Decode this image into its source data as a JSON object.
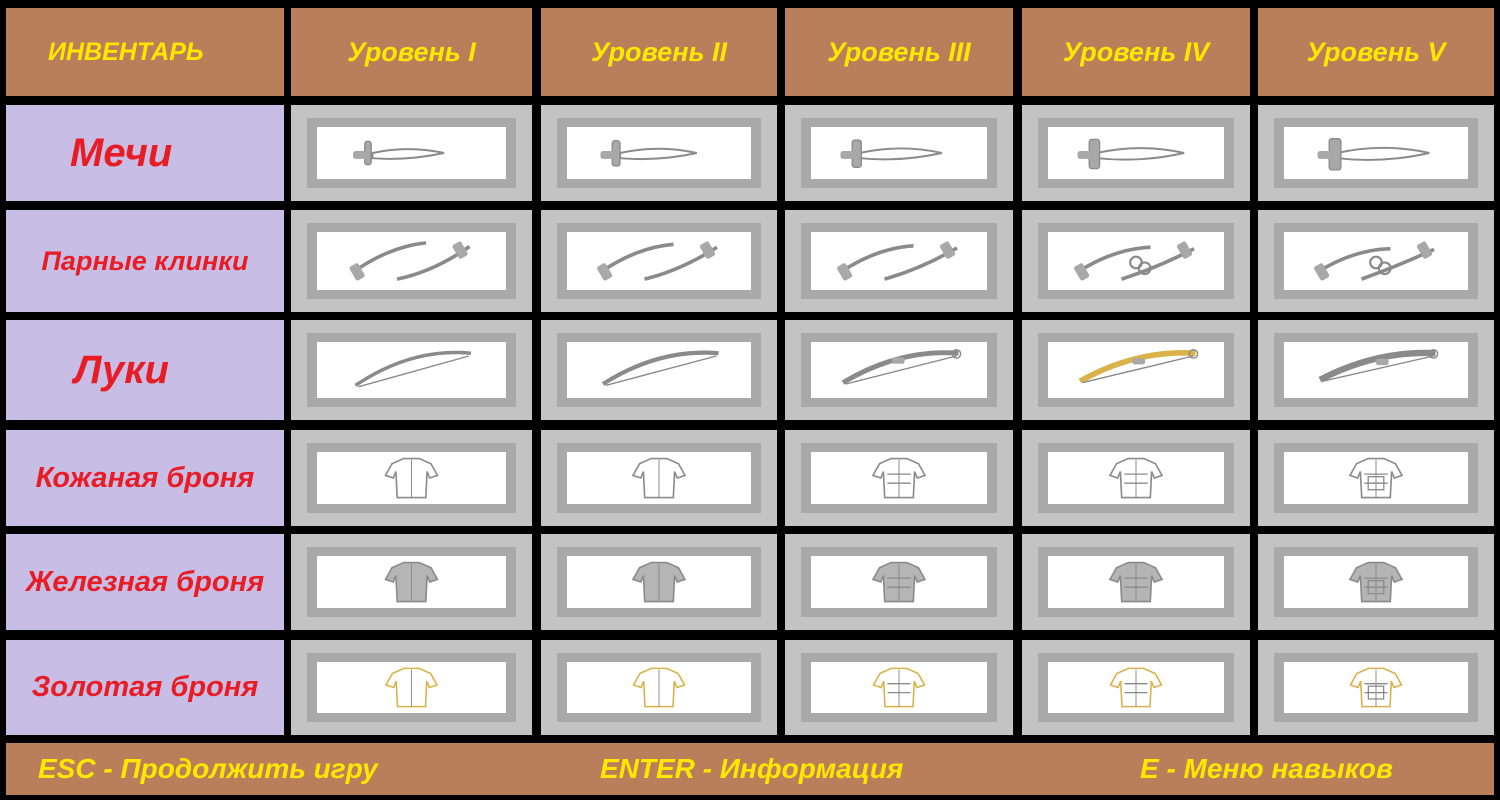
{
  "title": "ИНВЕНТАРЬ",
  "levels": [
    "Уровень I",
    "Уровень II",
    "Уровень III",
    "Уровень IV",
    "Уровень V"
  ],
  "rows": [
    {
      "label": "Мечи",
      "category": "sword"
    },
    {
      "label": "Парные клинки",
      "category": "dual-blades"
    },
    {
      "label": "Луки",
      "category": "bow"
    },
    {
      "label": "Кожаная броня",
      "category": "leather-armor"
    },
    {
      "label": "Железная броня",
      "category": "iron-armor"
    },
    {
      "label": "Золотая броня",
      "category": "gold-armor"
    }
  ],
  "footer": {
    "esc": "ESC - Продолжить игру",
    "enter": "ENTER - Информация",
    "e": "E - Меню навыков"
  },
  "colors": {
    "header_bg": "#b97f5b",
    "header_text": "#ffe800",
    "label_bg": "#c8bde5",
    "label_text": "#e81c24",
    "slot_outer": "#c3c3c3",
    "slot_mid": "#a9a9a9",
    "slot_inner": "#ffffff",
    "sketch": "#8a8a8a",
    "gold_trim": "#d9b24a"
  }
}
